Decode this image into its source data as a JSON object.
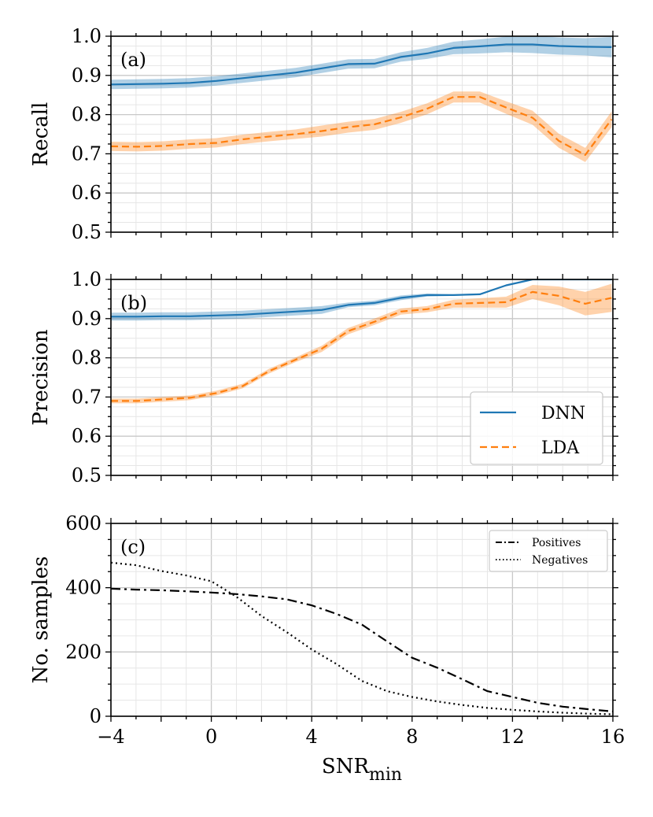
{
  "chart_data": [
    {
      "panel": "a",
      "type": "line",
      "tag": "(a)",
      "ylabel": "Recall",
      "ylim": [
        0.5,
        1.0
      ],
      "yticks": [
        "0.5",
        "0.6",
        "0.7",
        "0.8",
        "0.9",
        "1.0"
      ],
      "xlim": [
        -4,
        16
      ],
      "grid": true,
      "series": [
        {
          "name": "DNN",
          "color": "#1f77b4",
          "style": "solid",
          "x": [
            -4,
            -2.95,
            -1.9,
            -0.85,
            0.2,
            1.25,
            2.3,
            3.35,
            4.4,
            5.45,
            6.5,
            7.55,
            8.6,
            9.65,
            10.7,
            11.75,
            12.8,
            13.85,
            14.9,
            15.95
          ],
          "y": [
            0.877,
            0.878,
            0.879,
            0.881,
            0.886,
            0.893,
            0.9,
            0.907,
            0.918,
            0.929,
            0.93,
            0.947,
            0.956,
            0.97,
            0.974,
            0.979,
            0.979,
            0.975,
            0.973,
            0.972
          ],
          "band": [
            0.012,
            0.012,
            0.012,
            0.012,
            0.012,
            0.012,
            0.012,
            0.012,
            0.012,
            0.012,
            0.012,
            0.012,
            0.014,
            0.016,
            0.018,
            0.02,
            0.022,
            0.022,
            0.022,
            0.026
          ]
        },
        {
          "name": "LDA",
          "color": "#ff7f0e",
          "style": "dashed",
          "x": [
            -4,
            -2.95,
            -1.9,
            -0.85,
            0.2,
            1.25,
            2.3,
            3.35,
            4.4,
            5.45,
            6.5,
            7.55,
            8.6,
            9.65,
            10.7,
            11.75,
            12.8,
            13.85,
            14.9,
            15.95
          ],
          "y": [
            0.719,
            0.718,
            0.72,
            0.725,
            0.728,
            0.737,
            0.744,
            0.75,
            0.758,
            0.768,
            0.775,
            0.793,
            0.815,
            0.845,
            0.845,
            0.818,
            0.792,
            0.733,
            0.697,
            0.788
          ],
          "band": [
            0.012,
            0.012,
            0.012,
            0.012,
            0.012,
            0.012,
            0.012,
            0.012,
            0.014,
            0.014,
            0.014,
            0.014,
            0.014,
            0.014,
            0.014,
            0.016,
            0.018,
            0.018,
            0.018,
            0.02
          ]
        }
      ]
    },
    {
      "panel": "b",
      "type": "line",
      "tag": "(b)",
      "ylabel": "Precision",
      "ylim": [
        0.5,
        1.0
      ],
      "yticks": [
        "0.5",
        "0.6",
        "0.7",
        "0.8",
        "0.9",
        "1.0"
      ],
      "xlim": [
        -4,
        16
      ],
      "grid": true,
      "legend": {
        "position": "lower-right",
        "entries": [
          "DNN",
          "LDA"
        ]
      },
      "series": [
        {
          "name": "DNN",
          "color": "#1f77b4",
          "style": "solid",
          "x": [
            -4,
            -2.95,
            -1.9,
            -0.85,
            0.2,
            1.25,
            2.3,
            3.35,
            4.4,
            5.45,
            6.5,
            7.55,
            8.6,
            9.65,
            10.7,
            11.75,
            12.8,
            13.85,
            14.9,
            15.95
          ],
          "y": [
            0.905,
            0.905,
            0.906,
            0.906,
            0.908,
            0.91,
            0.914,
            0.918,
            0.922,
            0.935,
            0.94,
            0.953,
            0.96,
            0.96,
            0.962,
            0.985,
            1.0,
            1.0,
            1.0,
            1.0
          ],
          "band": [
            0.01,
            0.01,
            0.01,
            0.01,
            0.01,
            0.01,
            0.01,
            0.01,
            0.01,
            0.006,
            0.006,
            0.006,
            0.004,
            0.002,
            0.002,
            0.0,
            0.0,
            0.0,
            0.0,
            0.0
          ]
        },
        {
          "name": "LDA",
          "color": "#ff7f0e",
          "style": "dashed",
          "x": [
            -4,
            -2.95,
            -1.9,
            -0.85,
            0.2,
            1.25,
            2.3,
            3.35,
            4.4,
            5.45,
            6.5,
            7.55,
            8.6,
            9.65,
            10.7,
            11.75,
            12.8,
            13.85,
            14.9,
            15.95
          ],
          "y": [
            0.69,
            0.69,
            0.694,
            0.698,
            0.71,
            0.728,
            0.766,
            0.795,
            0.823,
            0.868,
            0.892,
            0.918,
            0.924,
            0.938,
            0.94,
            0.942,
            0.968,
            0.958,
            0.938,
            0.953
          ],
          "band": [
            0.006,
            0.006,
            0.006,
            0.006,
            0.006,
            0.006,
            0.006,
            0.006,
            0.008,
            0.008,
            0.008,
            0.008,
            0.008,
            0.01,
            0.012,
            0.014,
            0.018,
            0.024,
            0.03,
            0.036
          ]
        }
      ]
    },
    {
      "panel": "c",
      "type": "line",
      "tag": "(c)",
      "ylabel": "No. samples",
      "xlabel_main": "SNR",
      "xlabel_sub": "min",
      "ylim": [
        0,
        600
      ],
      "yticks": [
        "0",
        "200",
        "400",
        "600"
      ],
      "xlim": [
        -4,
        16
      ],
      "xticks": [
        "−4",
        "0",
        "4",
        "8",
        "12",
        "16"
      ],
      "grid": true,
      "legend": {
        "position": "upper-right",
        "entries": [
          "Positives",
          "Negatives"
        ]
      },
      "series": [
        {
          "name": "Positives",
          "color": "#000000",
          "style": "dashdot",
          "x": [
            -4,
            -3,
            -2,
            -1,
            0,
            1,
            2,
            3,
            4,
            5,
            6,
            7,
            8,
            9,
            10,
            11,
            12,
            13,
            14,
            15,
            16
          ],
          "y": [
            397,
            394,
            392,
            389,
            385,
            380,
            373,
            364,
            345,
            318,
            285,
            233,
            182,
            151,
            115,
            78,
            60,
            42,
            30,
            22,
            15
          ]
        },
        {
          "name": "Negatives",
          "color": "#000000",
          "style": "dotted",
          "x": [
            -4,
            -3,
            -2,
            -1,
            0,
            1,
            2,
            3,
            4,
            5,
            6,
            7,
            8,
            9,
            10,
            11,
            12,
            13,
            14,
            15,
            16
          ],
          "y": [
            478,
            470,
            452,
            438,
            420,
            372,
            312,
            262,
            208,
            162,
            110,
            78,
            60,
            46,
            35,
            26,
            20,
            15,
            11,
            8,
            6
          ]
        }
      ]
    }
  ]
}
